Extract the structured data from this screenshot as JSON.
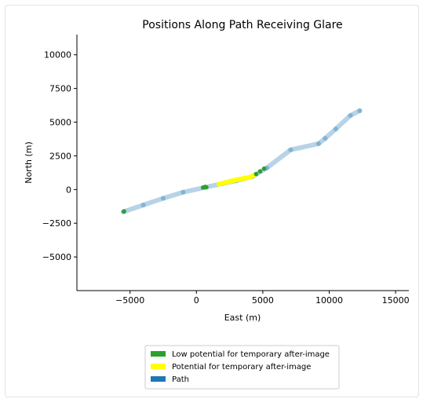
{
  "chart_data": {
    "type": "line",
    "title": "Positions Along Path Receiving Glare",
    "xlabel": "East (m)",
    "ylabel": "North (m)",
    "xlim": [
      -9000,
      16000
    ],
    "ylim": [
      -7500,
      11500
    ],
    "xticks": [
      -5000,
      0,
      5000,
      10000,
      15000
    ],
    "xtick_labels": [
      "−5000",
      "0",
      "5000",
      "10000",
      "15000"
    ],
    "yticks": [
      -5000,
      -2500,
      0,
      2500,
      5000,
      7500,
      10000
    ],
    "ytick_labels": [
      "−5000",
      "−2500",
      "0",
      "2500",
      "5000",
      "7500",
      "10000"
    ],
    "grid": false,
    "legend_position": "bottom",
    "series": [
      {
        "name": "Path",
        "color": "#1f77b4",
        "x": [
          -5500,
          -4000,
          -2500,
          -1000,
          600,
          2000,
          3000,
          4200,
          5300,
          7100,
          9200,
          9700,
          10500,
          11600,
          12300
        ],
        "y": [
          -1650,
          -1150,
          -650,
          -200,
          150,
          450,
          650,
          950,
          1600,
          2950,
          3400,
          3800,
          4500,
          5500,
          5850
        ]
      },
      {
        "name": "Low potential for temporary after-image",
        "color": "#2ca02c",
        "x": [
          -5450,
          500,
          650,
          750,
          4500,
          4800,
          5100
        ],
        "y": [
          -1620,
          150,
          200,
          170,
          1150,
          1350,
          1550
        ]
      },
      {
        "name": "Potential for temporary after-image",
        "color": "#ffff00",
        "x": [
          1700,
          2500,
          3300,
          4000,
          4300
        ],
        "y": [
          400,
          600,
          780,
          900,
          1050
        ]
      }
    ]
  },
  "legend": {
    "items": [
      {
        "label": "Low potential for temporary after-image",
        "color": "#2ca02c"
      },
      {
        "label": "Potential for temporary after-image",
        "color": "#ffff00"
      },
      {
        "label": "Path",
        "color": "#1f77b4"
      }
    ]
  }
}
